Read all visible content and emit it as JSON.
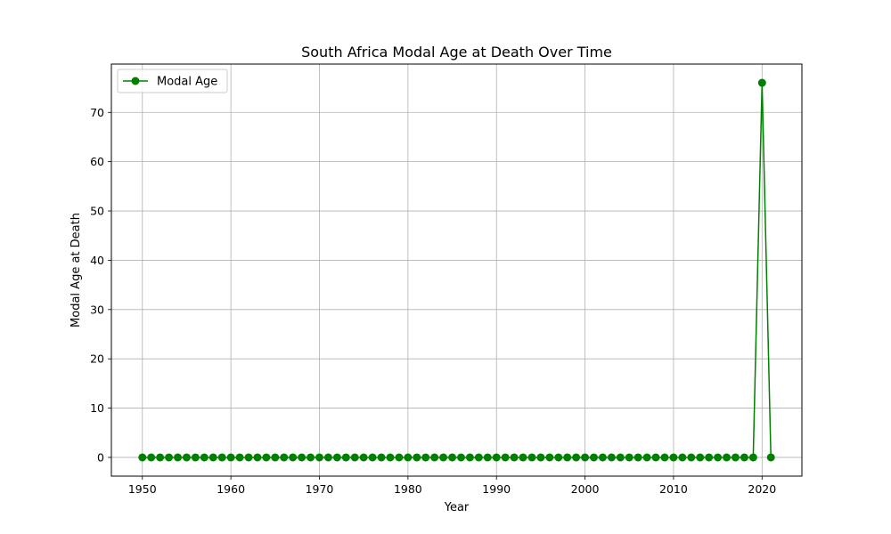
{
  "chart_data": {
    "type": "line",
    "title": "South Africa Modal Age at Death Over Time",
    "xlabel": "Year",
    "ylabel": "Modal Age at Death",
    "xlim": [
      1946.5,
      2024.5
    ],
    "ylim": [
      -3.8,
      79.8
    ],
    "xticks": [
      1950,
      1960,
      1970,
      1980,
      1990,
      2000,
      2010,
      2020
    ],
    "yticks": [
      0,
      10,
      20,
      30,
      40,
      50,
      60,
      70
    ],
    "grid": true,
    "legend_position": "top-left",
    "series": [
      {
        "name": "Modal Age",
        "color": "#008000",
        "marker": "circle",
        "x": [
          1950,
          1951,
          1952,
          1953,
          1954,
          1955,
          1956,
          1957,
          1958,
          1959,
          1960,
          1961,
          1962,
          1963,
          1964,
          1965,
          1966,
          1967,
          1968,
          1969,
          1970,
          1971,
          1972,
          1973,
          1974,
          1975,
          1976,
          1977,
          1978,
          1979,
          1980,
          1981,
          1982,
          1983,
          1984,
          1985,
          1986,
          1987,
          1988,
          1989,
          1990,
          1991,
          1992,
          1993,
          1994,
          1995,
          1996,
          1997,
          1998,
          1999,
          2000,
          2001,
          2002,
          2003,
          2004,
          2005,
          2006,
          2007,
          2008,
          2009,
          2010,
          2011,
          2012,
          2013,
          2014,
          2015,
          2016,
          2017,
          2018,
          2019,
          2020,
          2021
        ],
        "values": [
          0,
          0,
          0,
          0,
          0,
          0,
          0,
          0,
          0,
          0,
          0,
          0,
          0,
          0,
          0,
          0,
          0,
          0,
          0,
          0,
          0,
          0,
          0,
          0,
          0,
          0,
          0,
          0,
          0,
          0,
          0,
          0,
          0,
          0,
          0,
          0,
          0,
          0,
          0,
          0,
          0,
          0,
          0,
          0,
          0,
          0,
          0,
          0,
          0,
          0,
          0,
          0,
          0,
          0,
          0,
          0,
          0,
          0,
          0,
          0,
          0,
          0,
          0,
          0,
          0,
          0,
          0,
          0,
          0,
          0,
          76,
          0
        ]
      }
    ]
  }
}
